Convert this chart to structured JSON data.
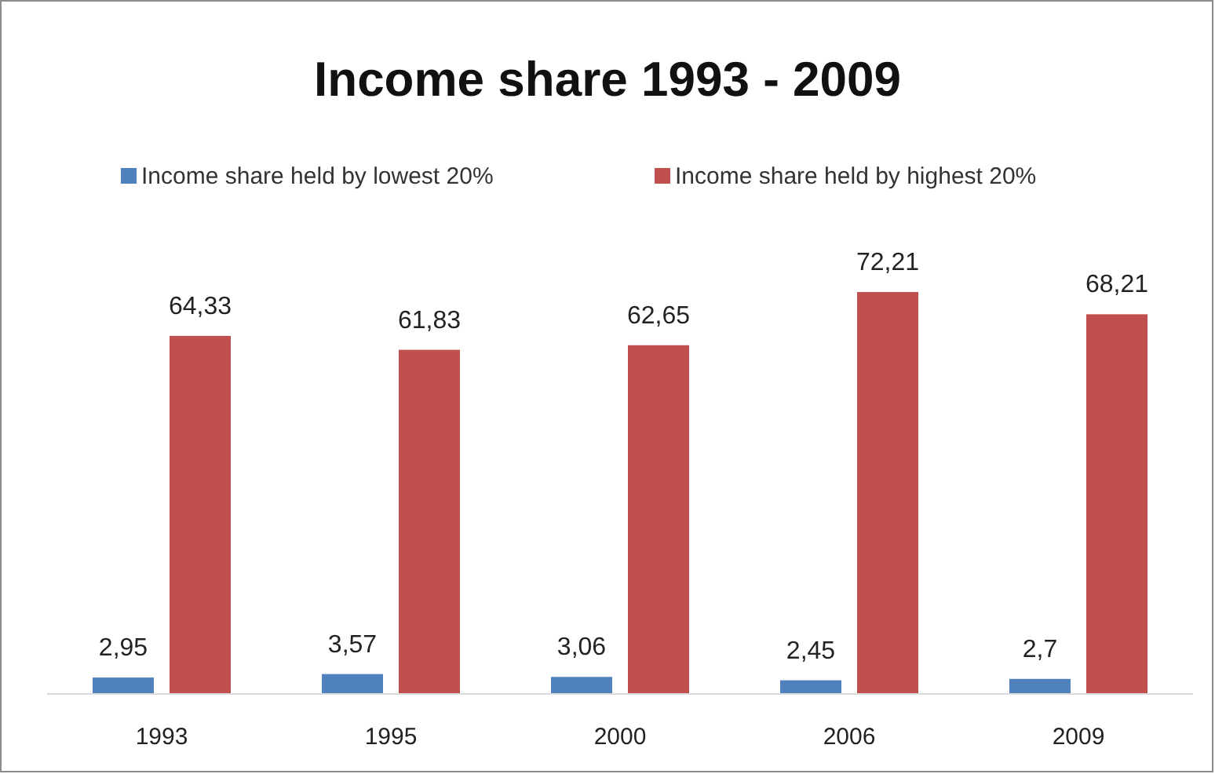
{
  "chart_data": {
    "type": "bar",
    "title": "Income share 1993 - 2009",
    "categories": [
      "1993",
      "1995",
      "2000",
      "2006",
      "2009"
    ],
    "series": [
      {
        "name": "Income share held by lowest 20%",
        "color": "#4f81bd",
        "values": [
          2.95,
          3.57,
          3.06,
          2.45,
          2.7
        ],
        "value_labels": [
          "2,95",
          "3,57",
          "3,06",
          "2,45",
          "2,7"
        ]
      },
      {
        "name": "Income share held by highest 20%",
        "color": "#c0504d",
        "values": [
          64.33,
          61.83,
          62.65,
          72.21,
          68.21
        ],
        "value_labels": [
          "64,33",
          "61,83",
          "62,65",
          "72,21",
          "68,21"
        ]
      }
    ],
    "legend": "top",
    "tick_labels": "x"
  }
}
